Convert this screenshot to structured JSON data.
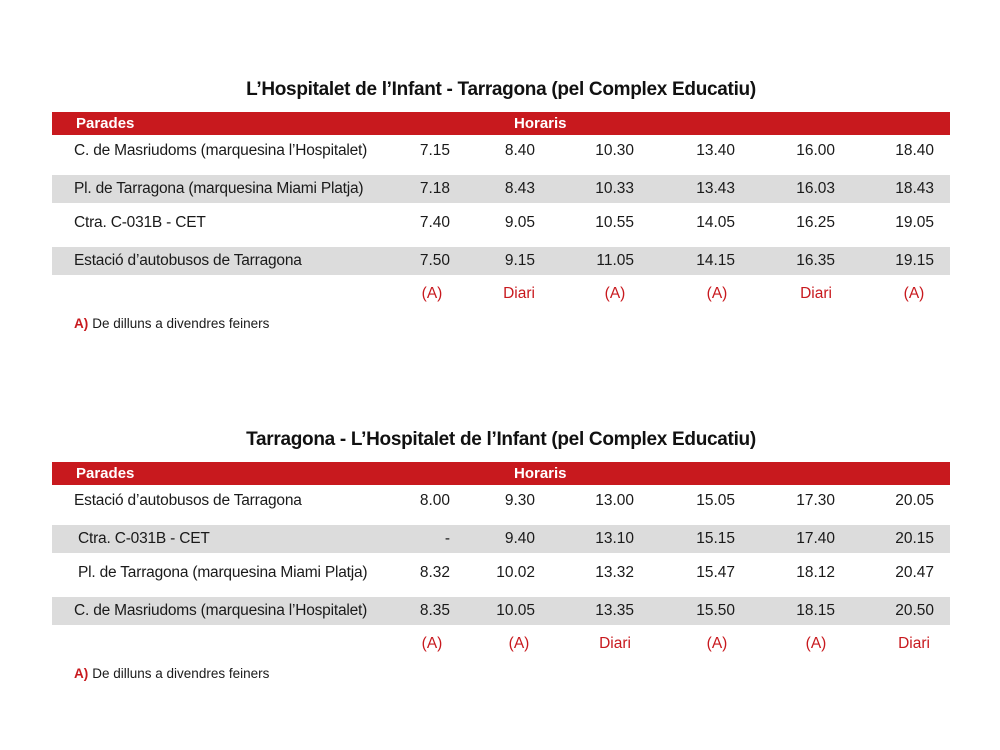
{
  "colors": {
    "accent": "#c8191e",
    "row_shade": "#dcdcdc"
  },
  "timetables": [
    {
      "title": "L’Hospitalet de l’Infant - Tarragona (pel Complex Educatiu)",
      "header": {
        "stops": "Parades",
        "times": "Horaris"
      },
      "rows": [
        {
          "stop": "C. de Masriudoms (marquesina l’Hospitalet)",
          "times": [
            "7.15",
            "8.40",
            "10.30",
            "13.40",
            "16.00",
            "18.40"
          ]
        },
        {
          "stop": "Pl. de Tarragona (marquesina Miami Platja)",
          "times": [
            "7.18",
            "8.43",
            "10.33",
            "13.43",
            "16.03",
            "18.43"
          ]
        },
        {
          "stop": "Ctra. C-031B - CET",
          "times": [
            "7.40",
            "9.05",
            "10.55",
            "14.05",
            "16.25",
            "19.05"
          ]
        },
        {
          "stop": "Estació d’autobusos de Tarragona",
          "times": [
            "7.50",
            "9.15",
            "11.05",
            "14.15",
            "16.35",
            "19.15"
          ]
        }
      ],
      "frequency": [
        "(A)",
        "Diari",
        "(A)",
        "(A)",
        "Diari",
        "(A)"
      ],
      "note": {
        "key": "A)",
        "text": "De dilluns a divendres feiners"
      }
    },
    {
      "title": "Tarragona - L’Hospitalet de l’Infant (pel Complex Educatiu)",
      "header": {
        "stops": "Parades",
        "times": "Horaris"
      },
      "rows": [
        {
          "stop": "Estació d’autobusos de Tarragona",
          "times": [
            "8.00",
            "9.30",
            "13.00",
            "15.05",
            "17.30",
            "20.05"
          ]
        },
        {
          "stop": "Ctra. C-031B - CET",
          "times": [
            "-",
            "9.40",
            "13.10",
            "15.15",
            "17.40",
            "20.15"
          ]
        },
        {
          "stop": "Pl. de Tarragona (marquesina Miami Platja)",
          "times": [
            "8.32",
            "10.02",
            "13.32",
            "15.47",
            "18.12",
            "20.47"
          ]
        },
        {
          "stop": "C. de Masriudoms (marquesina l’Hospitalet)",
          "times": [
            "8.35",
            "10.05",
            "13.35",
            "15.50",
            "18.15",
            "20.50"
          ]
        }
      ],
      "frequency": [
        "(A)",
        "(A)",
        "Diari",
        "(A)",
        "(A)",
        "Diari"
      ],
      "note": {
        "key": "A)",
        "text": "De dilluns a divendres feiners"
      }
    }
  ]
}
